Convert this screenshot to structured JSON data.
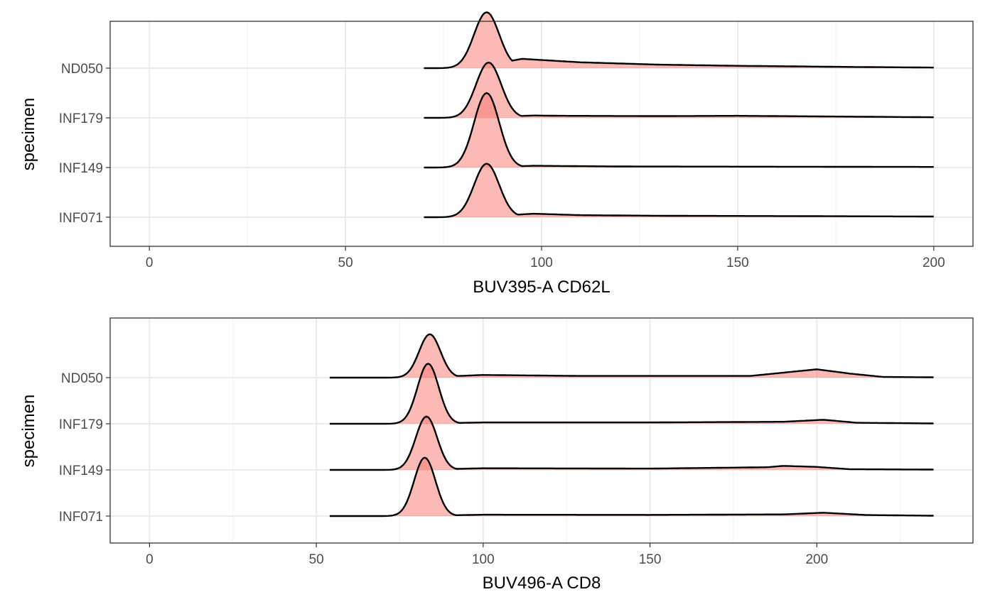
{
  "chart_data": [
    {
      "type": "ridgeline",
      "xlabel": "BUV395-A CD62L",
      "ylabel": "specimen",
      "xlim": [
        -10,
        210
      ],
      "x_ticks": [
        0,
        50,
        100,
        150,
        200
      ],
      "x_range": [
        70,
        200
      ],
      "grid": true,
      "fill_color": "#F8766D",
      "categories": [
        "INF071",
        "INF149",
        "INF179",
        "ND050"
      ],
      "series": [
        {
          "name": "INF071",
          "peak": 86,
          "peak_density": 0.92,
          "tail": [
            [
              98,
              0.06
            ],
            [
              110,
              0.035
            ],
            [
              130,
              0.025
            ],
            [
              160,
              0.02
            ],
            [
              200,
              0.012
            ]
          ]
        },
        {
          "name": "INF149",
          "peak": 86,
          "peak_density": 1.28,
          "tail": [
            [
              98,
              0.03
            ],
            [
              120,
              0.018
            ],
            [
              160,
              0.014
            ],
            [
              200,
              0.01
            ]
          ]
        },
        {
          "name": "INF179",
          "peak": 86.5,
          "peak_density": 0.95,
          "tail": [
            [
              98,
              0.04
            ],
            [
              105,
              0.035
            ],
            [
              130,
              0.03
            ],
            [
              150,
              0.035
            ],
            [
              170,
              0.025
            ],
            [
              200,
              0.01
            ]
          ]
        },
        {
          "name": "ND050",
          "peak": 86,
          "peak_density": 0.96,
          "tail": [
            [
              95,
              0.16
            ],
            [
              110,
              0.1
            ],
            [
              130,
              0.06
            ],
            [
              150,
              0.04
            ],
            [
              180,
              0.02
            ],
            [
              200,
              0.01
            ]
          ]
        }
      ]
    },
    {
      "type": "ridgeline",
      "xlabel": "BUV496-A CD8",
      "ylabel": "specimen",
      "xlim": [
        -11.8,
        246.8
      ],
      "x_ticks": [
        0,
        50,
        100,
        150,
        200
      ],
      "x_range": [
        54,
        235
      ],
      "grid": true,
      "fill_color": "#F8766D",
      "categories": [
        "INF071",
        "INF149",
        "INF179",
        "ND050"
      ],
      "series": [
        {
          "name": "INF071",
          "peak": 82.5,
          "peak_density": 1.75,
          "tail": [
            [
              100,
              0.04
            ],
            [
              150,
              0.035
            ],
            [
              190,
              0.05
            ],
            [
              202,
              0.1
            ],
            [
              215,
              0.03
            ],
            [
              235,
              0.01
            ]
          ]
        },
        {
          "name": "INF149",
          "peak": 83,
          "peak_density": 1.6,
          "tail": [
            [
              100,
              0.05
            ],
            [
              150,
              0.04
            ],
            [
              185,
              0.08
            ],
            [
              190,
              0.12
            ],
            [
              200,
              0.09
            ],
            [
              210,
              0.02
            ],
            [
              235,
              0.01
            ]
          ]
        },
        {
          "name": "INF179",
          "peak": 83.5,
          "peak_density": 1.8,
          "tail": [
            [
              100,
              0.04
            ],
            [
              150,
              0.04
            ],
            [
              190,
              0.06
            ],
            [
              202,
              0.12
            ],
            [
              212,
              0.03
            ],
            [
              235,
              0.01
            ]
          ]
        },
        {
          "name": "ND050",
          "peak": 84,
          "peak_density": 1.3,
          "tail": [
            [
              100,
              0.08
            ],
            [
              130,
              0.05
            ],
            [
              180,
              0.05
            ],
            [
              200,
              0.25
            ],
            [
              210,
              0.12
            ],
            [
              220,
              0.02
            ],
            [
              235,
              0.01
            ]
          ]
        }
      ]
    }
  ]
}
